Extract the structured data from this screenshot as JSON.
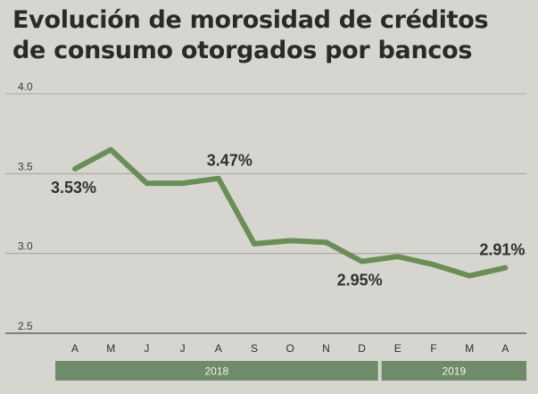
{
  "title_lines": [
    "Evolución de morosidad de créditos",
    "de consumo otorgados por bancos"
  ],
  "chart_data": {
    "type": "line",
    "title": "Evolución de morosidad de créditos de consumo otorgados por bancos",
    "x": [
      "A",
      "M",
      "J",
      "J",
      "A",
      "S",
      "O",
      "N",
      "D",
      "E",
      "F",
      "M",
      "A"
    ],
    "series": [
      {
        "values": [
          3.53,
          3.65,
          3.44,
          3.44,
          3.47,
          3.06,
          3.08,
          3.07,
          2.95,
          2.98,
          2.93,
          2.86,
          2.91
        ]
      }
    ],
    "yticks": [
      2.5,
      3.0,
      3.5,
      4.0
    ],
    "ytick_labels": [
      "2.5",
      "3.0",
      "3.5",
      "4.0"
    ],
    "ylim": [
      2.5,
      4.0
    ],
    "grid": true,
    "line_color": "#6b8e57",
    "data_labels": [
      {
        "index": 0,
        "text": "3.53%"
      },
      {
        "index": 4,
        "text": "3.47%"
      },
      {
        "index": 8,
        "text": "2.95%"
      },
      {
        "index": 12,
        "text": "2.91%"
      }
    ],
    "year_groups": [
      {
        "label": "2018",
        "start": 0,
        "end": 8
      },
      {
        "label": "2019",
        "start": 9,
        "end": 12
      }
    ],
    "year_bar_color": "#6e8b6a"
  }
}
